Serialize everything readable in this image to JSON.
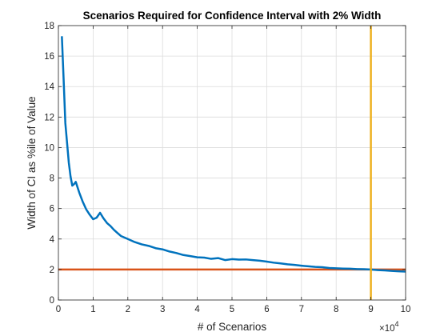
{
  "chart_data": {
    "type": "line",
    "title": "Scenarios Required for Confidence Interval with 2% Width",
    "xlabel": "# of Scenarios",
    "ylabel": "Width of CI as %ile of Value",
    "xlim": [
      0,
      100000
    ],
    "ylim": [
      0,
      18
    ],
    "x_tick_values": [
      0,
      10000,
      20000,
      30000,
      40000,
      50000,
      60000,
      70000,
      80000,
      90000,
      100000
    ],
    "x_tick_labels": [
      "0",
      "1",
      "2",
      "3",
      "4",
      "5",
      "6",
      "7",
      "8",
      "9",
      "10"
    ],
    "x_exponent_base": "×10",
    "x_exponent_power": "4",
    "y_tick_values": [
      0,
      2,
      4,
      6,
      8,
      10,
      12,
      14,
      16,
      18
    ],
    "y_tick_labels": [
      "0",
      "2",
      "4",
      "6",
      "8",
      "10",
      "12",
      "14",
      "16",
      "18"
    ],
    "grid": true,
    "series": [
      {
        "color": "#0072BD",
        "x": [
          1000,
          1500,
          2000,
          2500,
          3000,
          3500,
          4000,
          4500,
          5000,
          6000,
          7000,
          8000,
          9000,
          10000,
          11000,
          12000,
          13000,
          14000,
          15000,
          16000,
          17000,
          18000,
          19000,
          20000,
          22000,
          24000,
          26000,
          28000,
          30000,
          32000,
          34000,
          36000,
          38000,
          40000,
          42000,
          44000,
          46000,
          48000,
          50000,
          52000,
          54000,
          56000,
          58000,
          60000,
          62000,
          64000,
          66000,
          68000,
          70000,
          72000,
          74000,
          76000,
          78000,
          80000,
          82000,
          84000,
          86000,
          88000,
          90000,
          92000,
          94000,
          96000,
          98000,
          100000
        ],
        "y": [
          17.3,
          14.5,
          11.6,
          10.3,
          9.0,
          8.1,
          7.5,
          7.6,
          7.75,
          7.05,
          6.45,
          5.95,
          5.6,
          5.3,
          5.4,
          5.72,
          5.35,
          5.05,
          4.85,
          4.6,
          4.4,
          4.2,
          4.1,
          4.0,
          3.8,
          3.65,
          3.55,
          3.4,
          3.32,
          3.18,
          3.08,
          2.95,
          2.88,
          2.8,
          2.78,
          2.7,
          2.75,
          2.62,
          2.68,
          2.65,
          2.66,
          2.62,
          2.58,
          2.52,
          2.45,
          2.4,
          2.34,
          2.3,
          2.25,
          2.21,
          2.17,
          2.15,
          2.1,
          2.08,
          2.06,
          2.05,
          2.03,
          2.02,
          2.0,
          1.96,
          1.94,
          1.91,
          1.88,
          1.86
        ]
      },
      {
        "color": "#D95319",
        "x": [
          0,
          100000
        ],
        "y": [
          2,
          2
        ]
      }
    ],
    "vertical_line": {
      "x": 90000,
      "color": "#EDB120"
    }
  }
}
